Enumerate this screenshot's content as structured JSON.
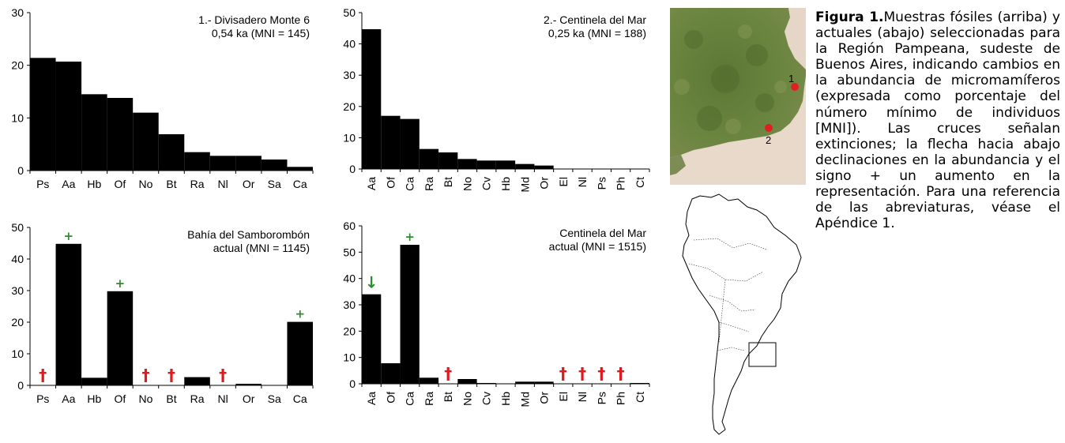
{
  "colors": {
    "bar": "#000000",
    "extinction": "#e0191e",
    "increase": "#2e8b2e",
    "land": "#5f7a3a",
    "sea": "#e8d8ca",
    "site": "#e02020"
  },
  "chart_data": [
    {
      "id": "c1",
      "type": "bar",
      "title": [
        "1.- Divisadero Monte 6",
        "0,54 ka (MNI = 145)"
      ],
      "categories": [
        "Ps",
        "Aa",
        "Hb",
        "Of",
        "No",
        "Bt",
        "Ra",
        "Nl",
        "Or",
        "Sa",
        "Ca"
      ],
      "values": [
        21.4,
        20.7,
        14.5,
        13.8,
        11.0,
        6.9,
        3.5,
        2.8,
        2.8,
        2.1,
        0.7
      ],
      "ylim": [
        0,
        30
      ],
      "yticks": [
        0,
        10,
        20,
        30
      ],
      "tick_rotation": "horizontal",
      "markers": []
    },
    {
      "id": "c2",
      "type": "bar",
      "title": [
        "2.- Centinela del Mar",
        "0,25 ka (MNI = 188)"
      ],
      "categories": [
        "Aa",
        "Of",
        "Ca",
        "Ra",
        "Bt",
        "No",
        "Cv",
        "Hb",
        "Md",
        "Or",
        "El",
        "Nl",
        "Ps",
        "Ph",
        "Ct"
      ],
      "values": [
        44.7,
        17.0,
        16.0,
        6.4,
        5.3,
        3.2,
        2.7,
        2.7,
        1.6,
        1.1,
        0,
        0,
        0,
        0,
        0
      ],
      "ylim": [
        0,
        50
      ],
      "yticks": [
        0,
        10,
        20,
        30,
        40,
        50
      ],
      "tick_rotation": "vertical",
      "markers": []
    },
    {
      "id": "c3",
      "type": "bar",
      "title": [
        "Bahía del Samborombón",
        "actual (MNI = 1145)"
      ],
      "categories": [
        "Ps",
        "Aa",
        "Hb",
        "Of",
        "No",
        "Bt",
        "Ra",
        "Nl",
        "Or",
        "Sa",
        "Ca"
      ],
      "values": [
        0,
        44.8,
        2.4,
        29.8,
        0,
        0,
        2.6,
        0,
        0.5,
        0,
        20.1
      ],
      "ylim": [
        0,
        50
      ],
      "yticks": [
        0,
        10,
        20,
        30,
        40,
        50
      ],
      "tick_rotation": "horizontal",
      "markers": [
        {
          "category": "Ps",
          "symbol": "†",
          "kind": "extinction"
        },
        {
          "category": "Aa",
          "symbol": "+",
          "kind": "increase"
        },
        {
          "category": "Of",
          "symbol": "+",
          "kind": "increase"
        },
        {
          "category": "No",
          "symbol": "†",
          "kind": "extinction"
        },
        {
          "category": "Bt",
          "symbol": "†",
          "kind": "extinction"
        },
        {
          "category": "Nl",
          "symbol": "†",
          "kind": "extinction"
        },
        {
          "category": "Ca",
          "symbol": "+",
          "kind": "increase"
        }
      ]
    },
    {
      "id": "c4",
      "type": "bar",
      "title": [
        "Centinela del Mar",
        "actual (MNI = 1515)"
      ],
      "categories": [
        "Aa",
        "Of",
        "Ca",
        "Ra",
        "Bt",
        "No",
        "Cv",
        "Hb",
        "Md",
        "Or",
        "El",
        "Nl",
        "Ps",
        "Ph",
        "Ct"
      ],
      "values": [
        34.0,
        7.8,
        52.8,
        2.3,
        0,
        1.8,
        0.3,
        0,
        0.8,
        0.8,
        0,
        0,
        0,
        0,
        0.3
      ],
      "ylim": [
        0,
        60
      ],
      "yticks": [
        0,
        10,
        20,
        30,
        40,
        50,
        60
      ],
      "tick_rotation": "vertical",
      "markers": [
        {
          "category": "Aa",
          "symbol": "↓",
          "kind": "decrease"
        },
        {
          "category": "Ca",
          "symbol": "+",
          "kind": "increase"
        },
        {
          "category": "Bt",
          "symbol": "†",
          "kind": "extinction"
        },
        {
          "category": "El",
          "symbol": "†",
          "kind": "extinction"
        },
        {
          "category": "Nl",
          "symbol": "†",
          "kind": "extinction"
        },
        {
          "category": "Ps",
          "symbol": "†",
          "kind": "extinction"
        },
        {
          "category": "Ph",
          "symbol": "†",
          "kind": "extinction"
        }
      ]
    }
  ],
  "map": {
    "site_labels": [
      "1",
      "2"
    ]
  },
  "caption": {
    "label": "Figura 1.",
    "text": "Muestras fósiles (arriba) y actuales (abajo) seleccionadas para la Región Pampeana, sudeste de Buenos Aires, indicando cambios en la abundancia de micromamíferos (expresada como porcentaje del número mínimo de individuos [MNI]). Las cruces señalan extinciones; la flecha hacia abajo declinaciones en la abundancia y el signo + un aumento en la representación. Para una referencia de las abreviaturas, véase el Apéndice 1."
  }
}
